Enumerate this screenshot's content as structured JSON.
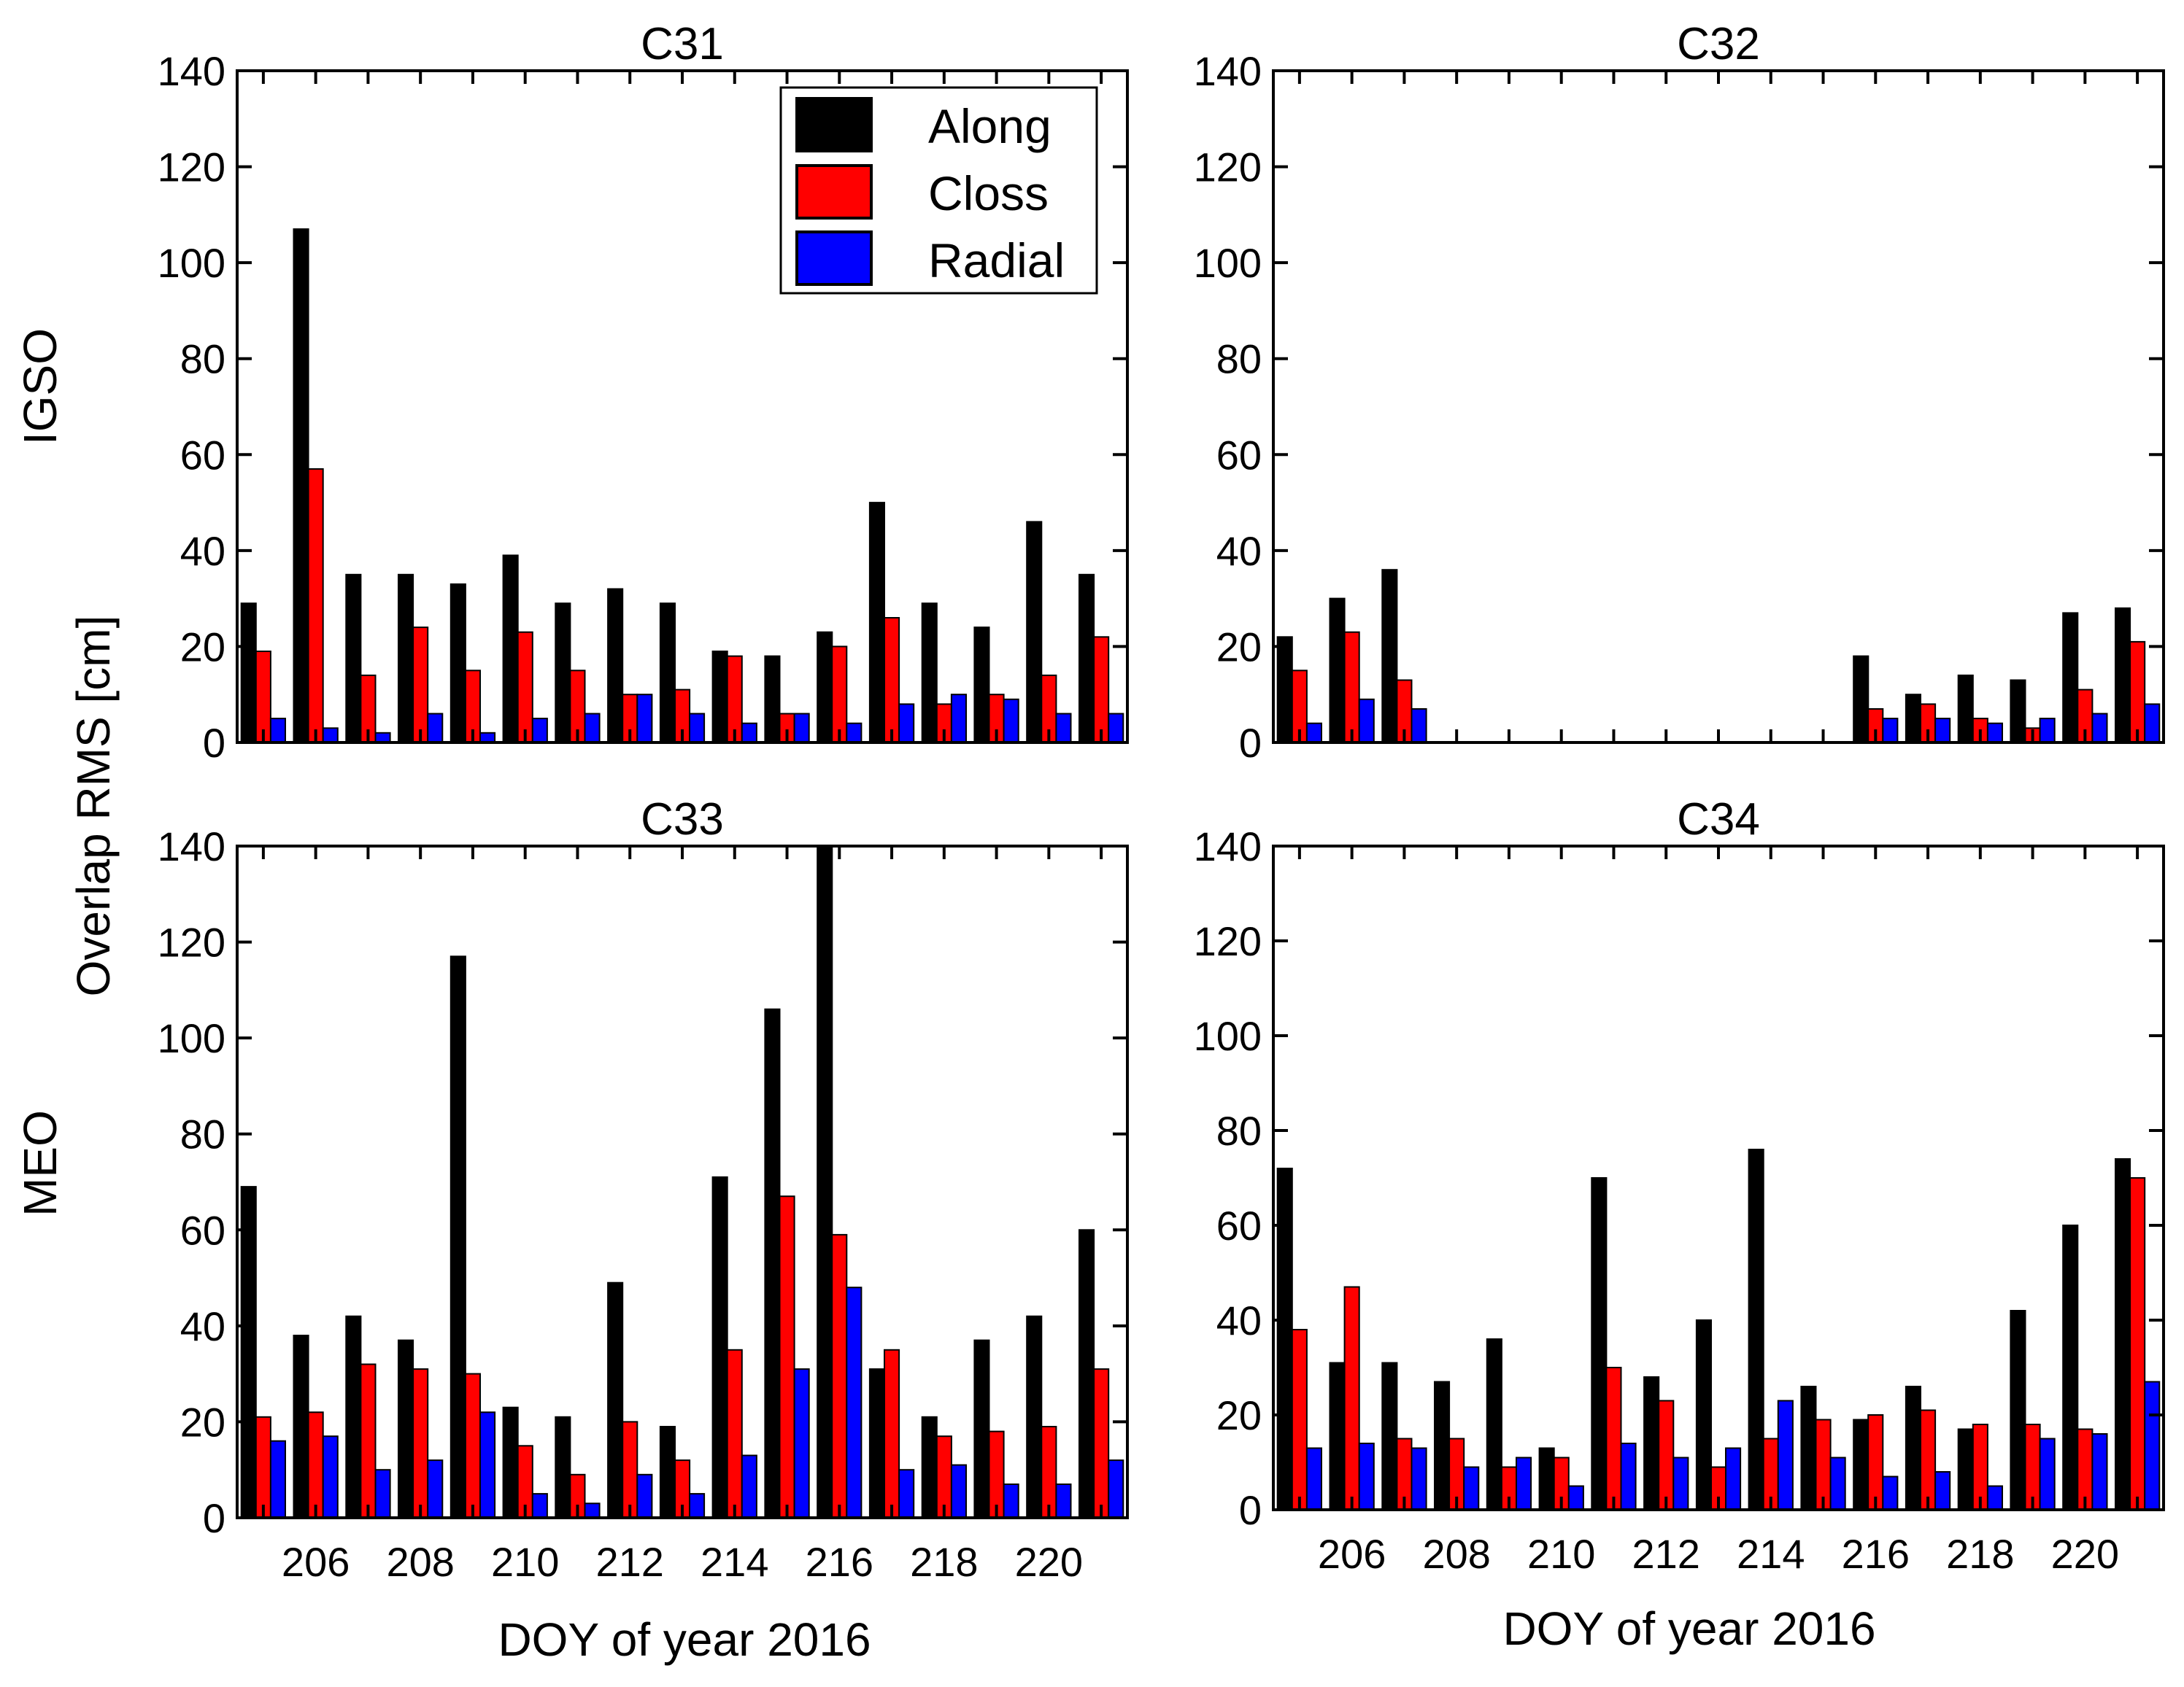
{
  "figure": {
    "ylabel": "Overlap RMS [cm]",
    "xlabel": "DOY of year 2016",
    "row_labels": [
      "IGSO",
      "MEO"
    ]
  },
  "legend": {
    "items": [
      {
        "label": "Along",
        "color": "#000000"
      },
      {
        "label": "Closs",
        "color": "#ff0000"
      },
      {
        "label": "Radial",
        "color": "#0000ff"
      }
    ]
  },
  "chart_data": [
    {
      "type": "bar",
      "title": "C31",
      "row": "IGSO",
      "days": [
        205,
        206,
        207,
        208,
        209,
        210,
        211,
        212,
        213,
        214,
        215,
        216,
        217,
        218,
        219,
        220,
        221
      ],
      "ylim": [
        0,
        140
      ],
      "yticks": [
        0,
        20,
        40,
        60,
        80,
        100,
        120,
        140
      ],
      "series": [
        {
          "name": "Along",
          "values": [
            29,
            107,
            35,
            35,
            33,
            39,
            29,
            32,
            29,
            19,
            18,
            23,
            50,
            29,
            24,
            46,
            35
          ]
        },
        {
          "name": "Closs",
          "values": [
            19,
            57,
            14,
            24,
            15,
            23,
            15,
            10,
            11,
            18,
            6,
            20,
            26,
            8,
            10,
            14,
            22
          ]
        },
        {
          "name": "Radial",
          "values": [
            5,
            3,
            2,
            6,
            2,
            5,
            6,
            10,
            6,
            4,
            6,
            4,
            8,
            10,
            9,
            6,
            6
          ]
        }
      ]
    },
    {
      "type": "bar",
      "title": "C32",
      "row": "IGSO",
      "days": [
        205,
        206,
        207,
        208,
        209,
        210,
        211,
        212,
        213,
        214,
        215,
        216,
        217,
        218,
        219,
        220,
        221
      ],
      "ylim": [
        0,
        140
      ],
      "yticks": [
        0,
        20,
        40,
        60,
        80,
        100,
        120,
        140
      ],
      "series": [
        {
          "name": "Along",
          "values": [
            22,
            30,
            36,
            0,
            0,
            0,
            0,
            0,
            0,
            0,
            0,
            18,
            10,
            14,
            13,
            27,
            28
          ]
        },
        {
          "name": "Closs",
          "values": [
            15,
            23,
            13,
            0,
            0,
            0,
            0,
            0,
            0,
            0,
            0,
            7,
            8,
            5,
            3,
            11,
            21
          ]
        },
        {
          "name": "Radial",
          "values": [
            4,
            9,
            7,
            0,
            0,
            0,
            0,
            0,
            0,
            0,
            0,
            5,
            5,
            4,
            5,
            6,
            8
          ]
        }
      ]
    },
    {
      "type": "bar",
      "title": "C33",
      "row": "MEO",
      "days": [
        205,
        206,
        207,
        208,
        209,
        210,
        211,
        212,
        213,
        214,
        215,
        216,
        217,
        218,
        219,
        220,
        221
      ],
      "ylim": [
        0,
        140
      ],
      "yticks": [
        0,
        20,
        40,
        60,
        80,
        100,
        120,
        140
      ],
      "xticks": [
        206,
        208,
        210,
        212,
        214,
        216,
        218,
        220
      ],
      "series": [
        {
          "name": "Along",
          "values": [
            69,
            38,
            42,
            37,
            117,
            23,
            21,
            49,
            19,
            71,
            106,
            140,
            31,
            21,
            37,
            42,
            60
          ]
        },
        {
          "name": "Closs",
          "values": [
            21,
            22,
            32,
            31,
            30,
            15,
            9,
            20,
            12,
            35,
            67,
            59,
            35,
            17,
            18,
            19,
            31
          ]
        },
        {
          "name": "Radial",
          "values": [
            16,
            17,
            10,
            12,
            22,
            5,
            3,
            9,
            5,
            13,
            31,
            48,
            10,
            11,
            7,
            7,
            12
          ]
        }
      ]
    },
    {
      "type": "bar",
      "title": "C34",
      "row": "MEO",
      "days": [
        205,
        206,
        207,
        208,
        209,
        210,
        211,
        212,
        213,
        214,
        215,
        216,
        217,
        218,
        219,
        220,
        221
      ],
      "ylim": [
        0,
        140
      ],
      "yticks": [
        0,
        20,
        40,
        60,
        80,
        100,
        120,
        140
      ],
      "xticks": [
        206,
        208,
        210,
        212,
        214,
        216,
        218,
        220
      ],
      "series": [
        {
          "name": "Along",
          "values": [
            72,
            31,
            31,
            27,
            36,
            13,
            70,
            28,
            40,
            76,
            26,
            19,
            26,
            17,
            42,
            60,
            74
          ]
        },
        {
          "name": "Closs",
          "values": [
            38,
            47,
            15,
            15,
            9,
            11,
            30,
            23,
            9,
            15,
            19,
            20,
            21,
            18,
            18,
            17,
            70
          ]
        },
        {
          "name": "Radial",
          "values": [
            13,
            14,
            13,
            9,
            11,
            5,
            14,
            11,
            13,
            23,
            11,
            7,
            8,
            5,
            15,
            16,
            27
          ]
        }
      ]
    }
  ]
}
